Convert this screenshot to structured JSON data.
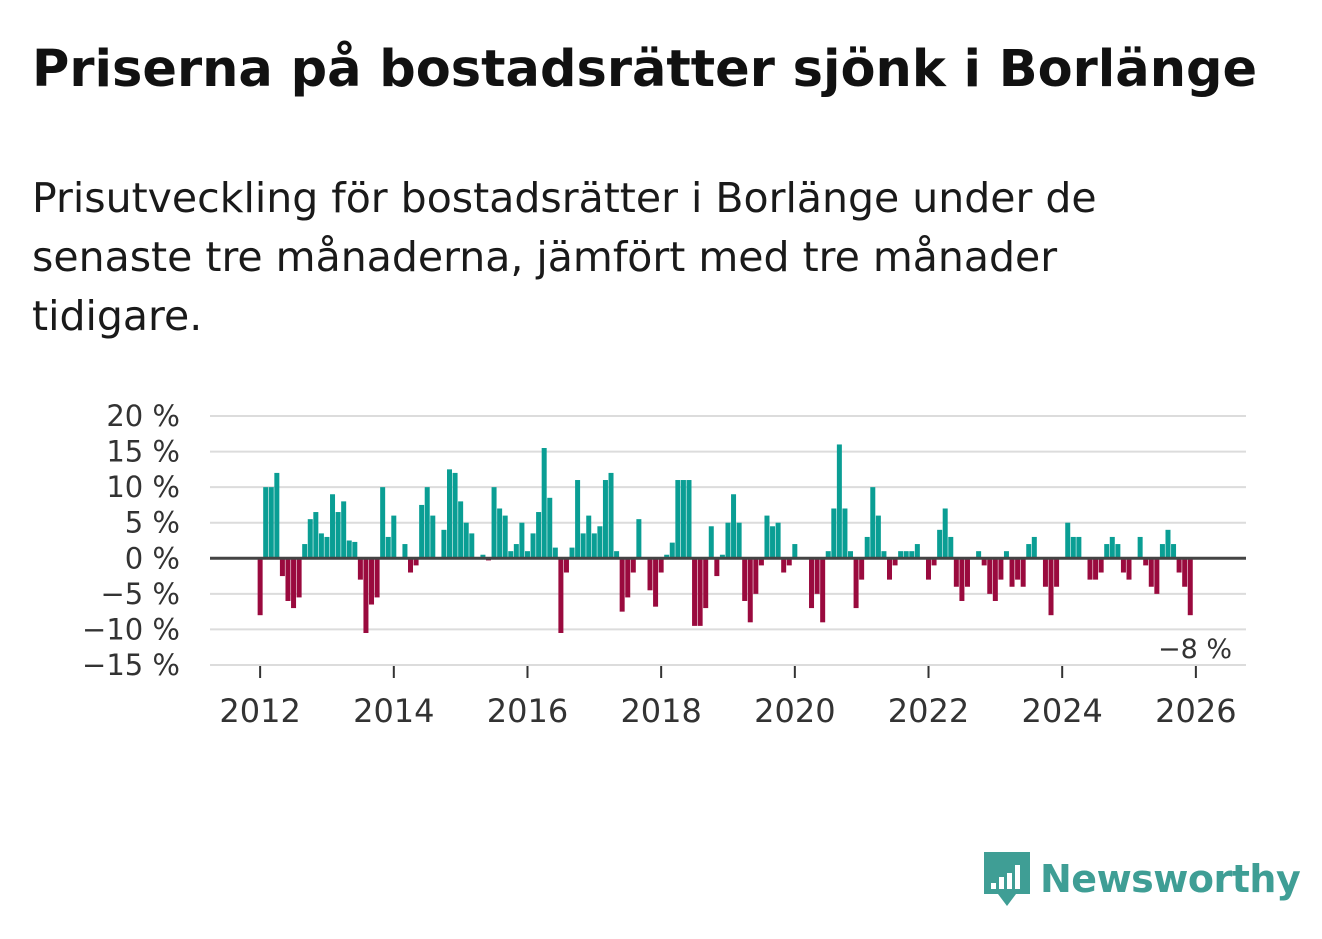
{
  "header": {
    "title": "Priserna på bostadsrätter sjönk i Borlänge",
    "subtitle": "Prisutveckling för bostadsrätter i Borlänge under de senaste tre månaderna, jämfört med tre månader tidigare."
  },
  "logo": {
    "text": "Newsworthy",
    "icon": "bar-chart-speech-bubble-icon",
    "color": "#3f9e95"
  },
  "chart_data": {
    "type": "bar",
    "title": "Priserna på bostadsrätter sjönk i Borlänge",
    "xlabel": "",
    "ylabel": "",
    "ylim": [
      -15,
      20
    ],
    "xlim": [
      2011.25,
      2026.75
    ],
    "y_ticks": [
      20,
      15,
      10,
      5,
      0,
      -5,
      -10,
      -15
    ],
    "y_tick_labels": [
      "20 %",
      "15 %",
      "10 %",
      "5 %",
      "0 %",
      "−5 %",
      "−10 %",
      "−15 %"
    ],
    "x_ticks": [
      2012,
      2014,
      2016,
      2018,
      2020,
      2022,
      2024,
      2026
    ],
    "x_tick_labels": [
      "2012",
      "2014",
      "2016",
      "2018",
      "2020",
      "2022",
      "2024",
      "2026"
    ],
    "grid": true,
    "positive_color": "#0a9e94",
    "negative_color": "#9a0a3e",
    "start": 2012.0,
    "step": 0.08333,
    "series": [
      {
        "name": "Prisutveckling",
        "values": [
          -8,
          10,
          10,
          12,
          -2.5,
          -6,
          -7,
          -5.5,
          2,
          5.5,
          6.5,
          3.5,
          3,
          9,
          6.5,
          8,
          2.5,
          2.3,
          -3,
          -10.5,
          -6.5,
          -5.5,
          10,
          3,
          6,
          0,
          2,
          -2,
          -1,
          7.5,
          10,
          6,
          0,
          4,
          12.5,
          12,
          8,
          5,
          3.5,
          0,
          0.5,
          -0.3,
          10,
          7,
          6,
          1,
          2,
          5,
          1,
          3.5,
          6.5,
          15.5,
          8.5,
          1.5,
          -10.5,
          -2,
          1.5,
          11,
          3.5,
          6,
          3.5,
          4.5,
          11,
          12,
          1,
          -7.5,
          -5.5,
          -2,
          5.5,
          0,
          -4.5,
          -6.8,
          -2,
          0.5,
          2.2,
          11,
          11,
          11,
          -9.5,
          -9.5,
          -7,
          4.5,
          -2.5,
          0.5,
          5,
          9,
          5,
          -6,
          -9,
          -5,
          -1,
          6,
          4.5,
          5,
          -2,
          -1,
          2,
          0,
          0,
          -7,
          -5,
          -9,
          1,
          7,
          16,
          7,
          1,
          -7,
          -3,
          3,
          10,
          6,
          1,
          -3,
          -1,
          1,
          1,
          1,
          2,
          0,
          -3,
          -1,
          4,
          7,
          3,
          -4,
          -6,
          -4,
          0,
          1,
          -1,
          -5,
          -6,
          -3,
          1,
          -4,
          -3,
          -4,
          2,
          3,
          0,
          -4,
          -8,
          -4,
          0,
          5,
          3,
          3,
          0,
          -3,
          -3,
          -2,
          2,
          3,
          2,
          -2,
          -3,
          0,
          3,
          -1,
          -4,
          -5,
          2,
          4,
          2,
          -2,
          -4,
          -8
        ]
      }
    ],
    "annotation": {
      "text": "−8 %",
      "value": -8,
      "x": 2026.0
    }
  }
}
